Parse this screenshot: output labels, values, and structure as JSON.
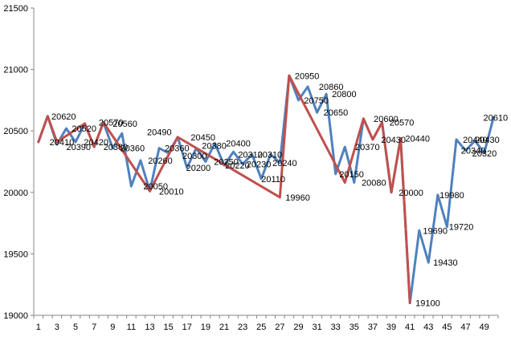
{
  "chart_data": {
    "type": "line",
    "title": "",
    "xlabel": "",
    "ylabel": "",
    "ylim": [
      19000,
      21500
    ],
    "y_ticks": [
      "19000",
      "19500",
      "20000",
      "20500",
      "21000",
      "21500"
    ],
    "x_ticks": [
      "1",
      "3",
      "5",
      "7",
      "9",
      "11",
      "13",
      "15",
      "17",
      "19",
      "21",
      "23",
      "25",
      "27",
      "29",
      "31",
      "33",
      "35",
      "37",
      "39",
      "41",
      "43",
      "45",
      "47",
      "49"
    ],
    "grid": false,
    "legend": "none",
    "x": [
      1,
      2,
      3,
      4,
      5,
      6,
      7,
      8,
      9,
      10,
      11,
      12,
      13,
      14,
      15,
      16,
      17,
      18,
      19,
      20,
      21,
      22,
      23,
      24,
      25,
      26,
      27,
      28,
      29,
      30,
      31,
      32,
      33,
      34,
      35,
      36,
      37,
      38,
      39,
      40,
      41,
      42,
      43,
      44,
      45,
      46,
      47,
      48,
      49,
      50
    ],
    "series": [
      {
        "color": "#4F81BD",
        "values": [
          20410,
          20620,
          20390,
          20520,
          20410,
          20560,
          20370,
          20570,
          20360,
          20480,
          20050,
          20260,
          20010,
          20360,
          20320,
          20450,
          20200,
          20360,
          20250,
          20400,
          20220,
          20330,
          20230,
          20310,
          20110,
          20310,
          20240,
          20950,
          20750,
          20860,
          20650,
          20800,
          20150,
          20370,
          20080,
          20600,
          20430,
          20570,
          20000,
          20440,
          19100,
          19690,
          19430,
          19980,
          19720,
          20430,
          20340,
          20420,
          20320,
          20610
        ]
      },
      {
        "color": "#C0504D",
        "x": [
          1,
          2,
          3,
          6,
          7,
          8,
          13,
          16,
          27,
          28,
          34,
          36,
          37,
          38,
          39,
          40,
          41
        ],
        "values": [
          20410,
          20620,
          20410,
          20560,
          20370,
          20570,
          20010,
          20450,
          19960,
          20950,
          20080,
          20600,
          20430,
          20570,
          20000,
          20440,
          19100
        ]
      }
    ],
    "labels": [
      {
        "text": "20620",
        "x": 2.4,
        "y": 20620
      },
      {
        "text": "20410",
        "x": 2.2,
        "y": 20410
      },
      {
        "text": "20390",
        "x": 4.0,
        "y": 20370
      },
      {
        "text": "20520",
        "x": 4.6,
        "y": 20520
      },
      {
        "text": "20420",
        "x": 5.9,
        "y": 20410
      },
      {
        "text": "20570",
        "x": 7.5,
        "y": 20570
      },
      {
        "text": "20560",
        "x": 9.0,
        "y": 20560
      },
      {
        "text": "20380",
        "x": 8.0,
        "y": 20370
      },
      {
        "text": "20360",
        "x": 9.8,
        "y": 20360
      },
      {
        "text": "20490",
        "x": 12.7,
        "y": 20490
      },
      {
        "text": "20260",
        "x": 12.8,
        "y": 20260
      },
      {
        "text": "20050",
        "x": 12.3,
        "y": 20050
      },
      {
        "text": "20010",
        "x": 14.0,
        "y": 20010
      },
      {
        "text": "20360",
        "x": 14.6,
        "y": 20360
      },
      {
        "text": "20450",
        "x": 17.4,
        "y": 20450
      },
      {
        "text": "20300",
        "x": 16.5,
        "y": 20300
      },
      {
        "text": "20380",
        "x": 18.6,
        "y": 20380
      },
      {
        "text": "20200",
        "x": 16.9,
        "y": 20200
      },
      {
        "text": "20400",
        "x": 21.2,
        "y": 20400
      },
      {
        "text": "20250",
        "x": 19.9,
        "y": 20250
      },
      {
        "text": "20220",
        "x": 21.1,
        "y": 20220
      },
      {
        "text": "20310",
        "x": 22.5,
        "y": 20310
      },
      {
        "text": "20310",
        "x": 24.6,
        "y": 20310
      },
      {
        "text": "20230",
        "x": 23.4,
        "y": 20230
      },
      {
        "text": "20240",
        "x": 26.2,
        "y": 20240
      },
      {
        "text": "20110",
        "x": 25.0,
        "y": 20110
      },
      {
        "text": "19960",
        "x": 27.6,
        "y": 19960
      },
      {
        "text": "20950",
        "x": 28.6,
        "y": 20950
      },
      {
        "text": "20860",
        "x": 31.2,
        "y": 20860
      },
      {
        "text": "20750",
        "x": 29.6,
        "y": 20750
      },
      {
        "text": "20800",
        "x": 32.6,
        "y": 20800
      },
      {
        "text": "20650",
        "x": 31.7,
        "y": 20650
      },
      {
        "text": "20370",
        "x": 35.1,
        "y": 20370
      },
      {
        "text": "20150",
        "x": 33.4,
        "y": 20150
      },
      {
        "text": "20600",
        "x": 37.1,
        "y": 20600
      },
      {
        "text": "20570",
        "x": 38.8,
        "y": 20570
      },
      {
        "text": "20430",
        "x": 37.9,
        "y": 20430
      },
      {
        "text": "20440",
        "x": 40.5,
        "y": 20440
      },
      {
        "text": "20080",
        "x": 35.8,
        "y": 20080
      },
      {
        "text": "20000",
        "x": 39.8,
        "y": 20000
      },
      {
        "text": "19980",
        "x": 44.2,
        "y": 19980
      },
      {
        "text": "19720",
        "x": 45.2,
        "y": 19720
      },
      {
        "text": "19690",
        "x": 42.4,
        "y": 19690
      },
      {
        "text": "19430",
        "x": 43.5,
        "y": 19430
      },
      {
        "text": "19100",
        "x": 41.6,
        "y": 19100
      },
      {
        "text": "20610",
        "x": 48.9,
        "y": 20610
      },
      {
        "text": "20440",
        "x": 46.7,
        "y": 20430
      },
      {
        "text": "20430",
        "x": 48.0,
        "y": 20430
      },
      {
        "text": "20340",
        "x": 46.5,
        "y": 20340
      },
      {
        "text": "20320",
        "x": 47.7,
        "y": 20320
      }
    ]
  }
}
